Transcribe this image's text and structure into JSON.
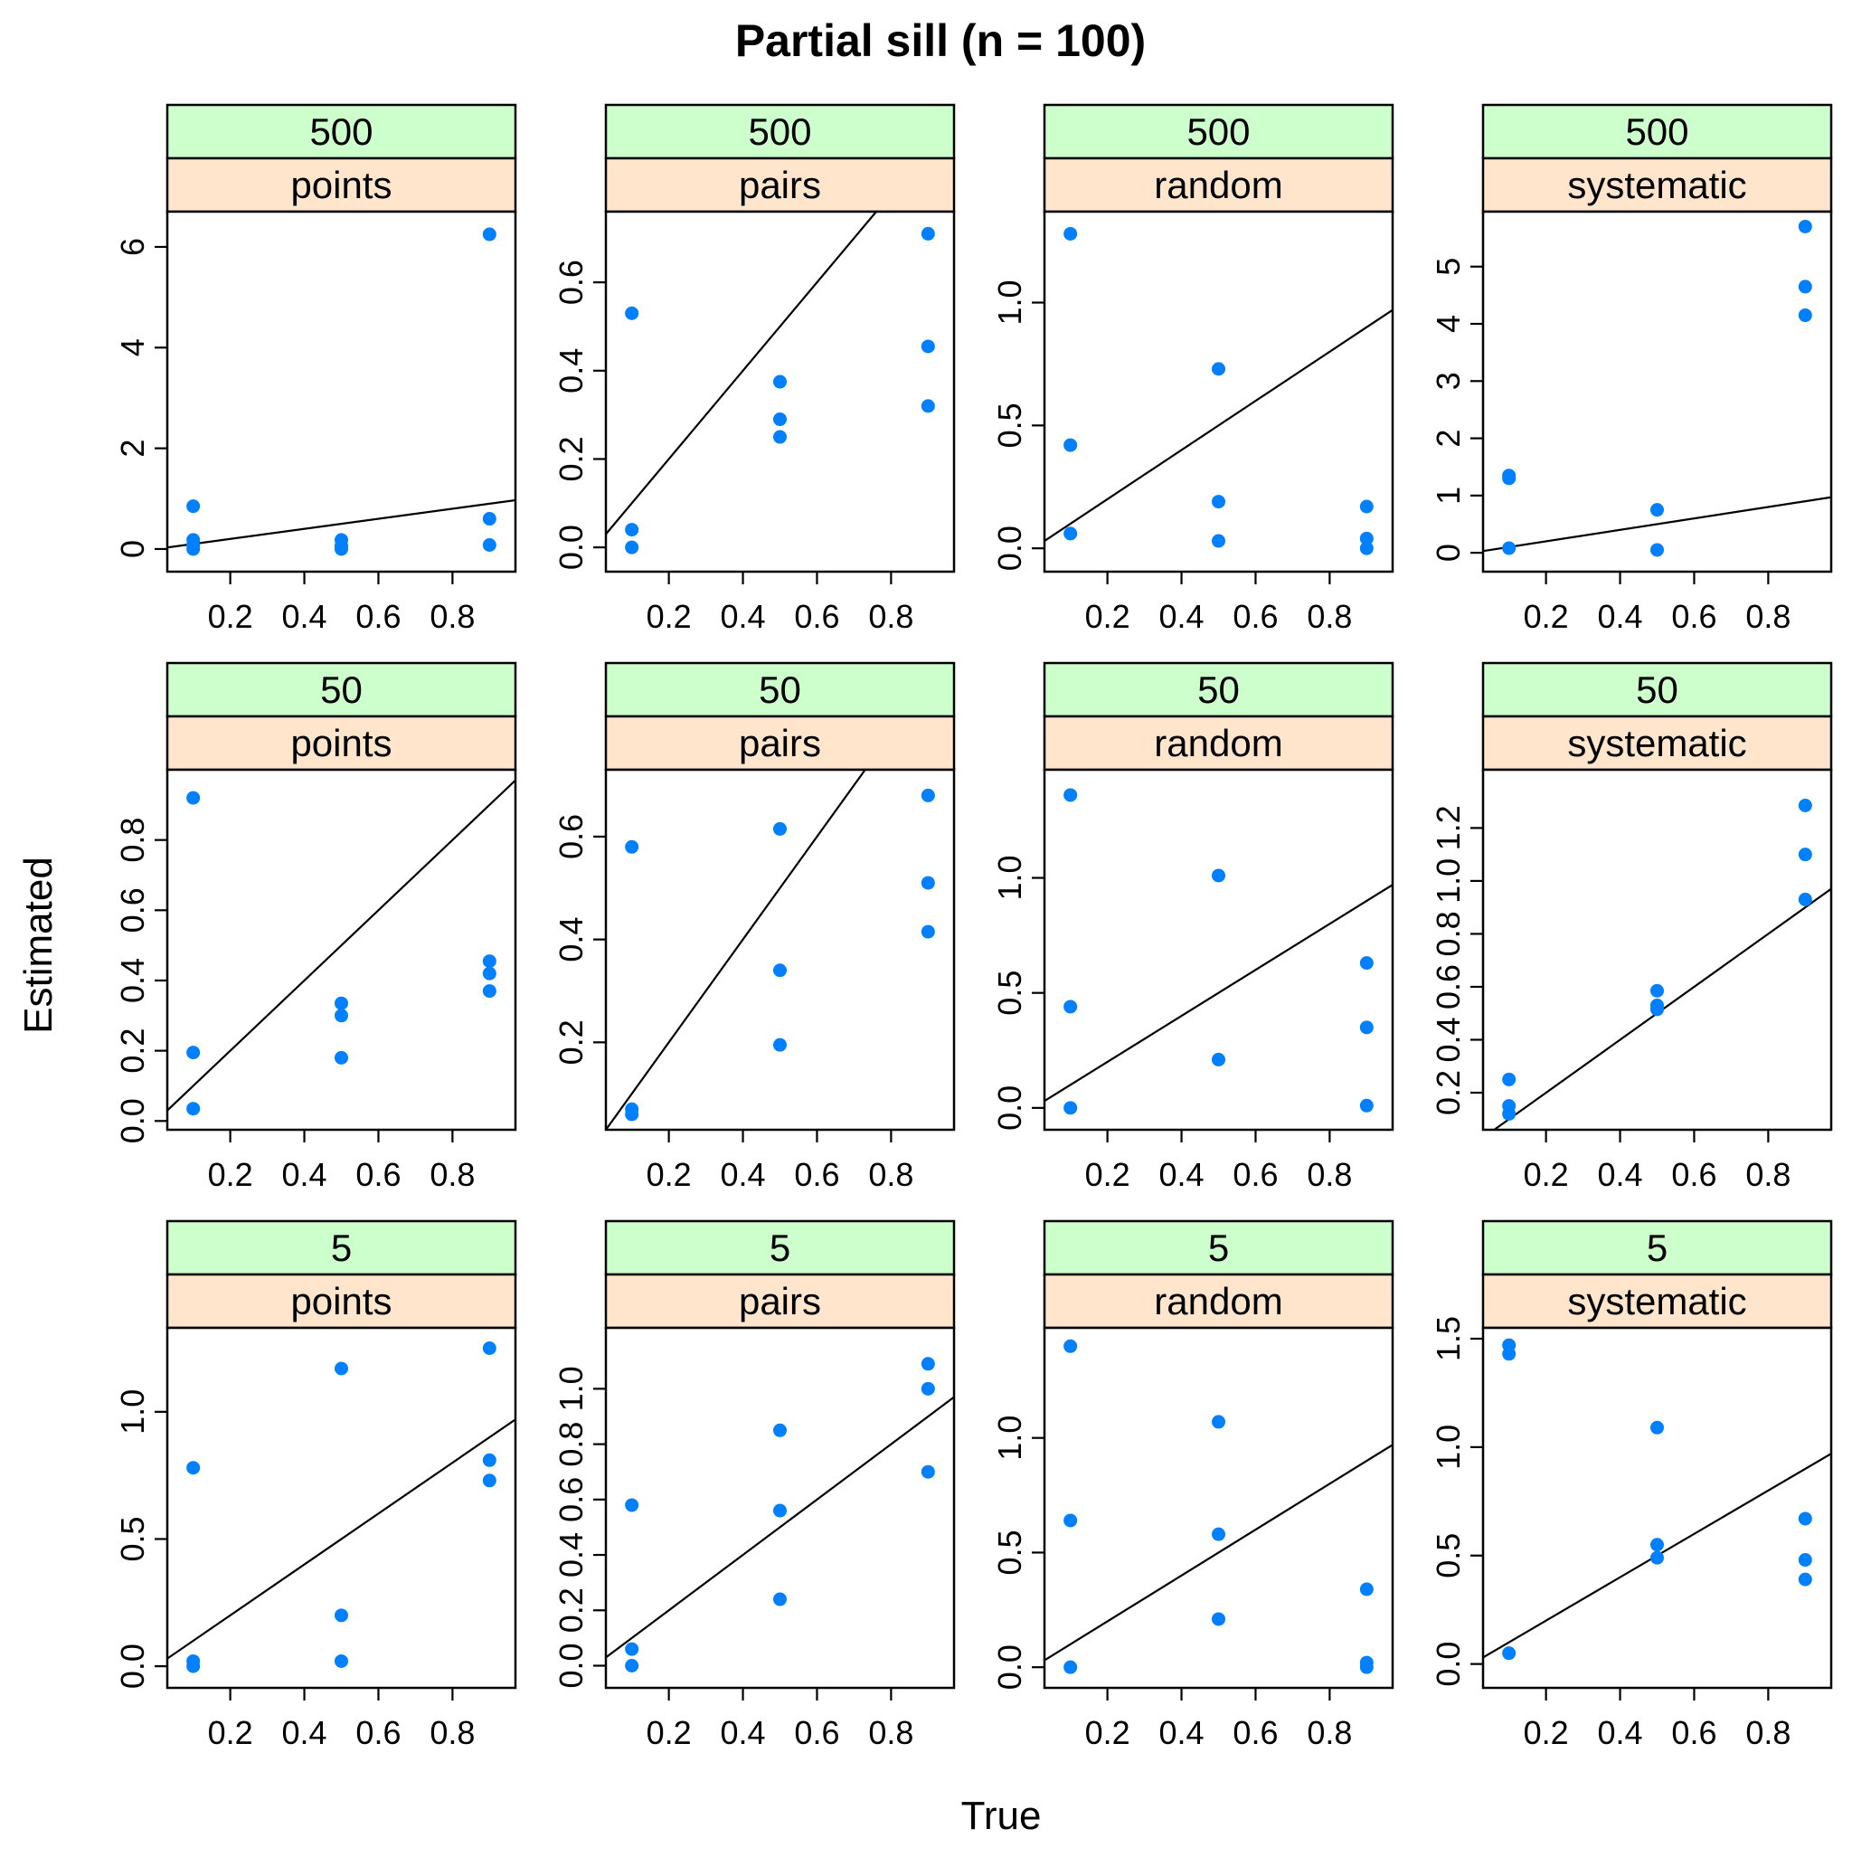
{
  "figure": {
    "title": "Partial sill (n = 100)",
    "xlabel": "True",
    "ylabel": "Estimated"
  },
  "colors": {
    "strip_top": "#ccffcc",
    "strip_bottom": "#ffe5cc",
    "points": "#0080ff",
    "line": "#000000"
  },
  "chart_data": [
    {
      "type": "scatter",
      "strip_top": "500",
      "strip_bottom": "points",
      "xlim": [
        0.03,
        0.97
      ],
      "ylim": [
        -0.45,
        6.7
      ],
      "xticks": [
        "0.2",
        "0.4",
        "0.6",
        "0.8"
      ],
      "yticks": [
        "0",
        "2",
        "4",
        "6"
      ],
      "reference_line": "y = x",
      "x": [
        0.1,
        0.1,
        0.1,
        0.1,
        0.5,
        0.5,
        0.5,
        0.9,
        0.9,
        0.9
      ],
      "y": [
        0.85,
        0.18,
        0.08,
        0.0,
        0.18,
        0.06,
        0.0,
        6.25,
        0.6,
        0.08
      ]
    },
    {
      "type": "scatter",
      "strip_top": "500",
      "strip_bottom": "pairs",
      "xlim": [
        0.03,
        0.97
      ],
      "ylim": [
        -0.055,
        0.76
      ],
      "xticks": [
        "0.2",
        "0.4",
        "0.6",
        "0.8"
      ],
      "yticks": [
        "0.0",
        "0.2",
        "0.4",
        "0.6"
      ],
      "reference_line": "y = x",
      "x": [
        0.1,
        0.1,
        0.1,
        0.5,
        0.5,
        0.5,
        0.9,
        0.9,
        0.9
      ],
      "y": [
        0.53,
        0.04,
        0.0,
        0.375,
        0.29,
        0.25,
        0.71,
        0.455,
        0.32
      ]
    },
    {
      "type": "scatter",
      "strip_top": "500",
      "strip_bottom": "random",
      "xlim": [
        0.03,
        0.97
      ],
      "ylim": [
        -0.095,
        1.37
      ],
      "xticks": [
        "0.2",
        "0.4",
        "0.6",
        "0.8"
      ],
      "yticks": [
        "0.0",
        "0.5",
        "1.0"
      ],
      "reference_line": "y = x",
      "x": [
        0.1,
        0.1,
        0.1,
        0.5,
        0.5,
        0.5,
        0.9,
        0.9,
        0.9
      ],
      "y": [
        1.28,
        0.42,
        0.06,
        0.73,
        0.19,
        0.03,
        0.17,
        0.04,
        0.0
      ],
      "notes": ""
    },
    {
      "type": "scatter",
      "strip_top": "500",
      "strip_bottom": "systematic",
      "xlim": [
        0.03,
        0.97
      ],
      "ylim": [
        -0.33,
        5.96
      ],
      "xticks": [
        "0.2",
        "0.4",
        "0.6",
        "0.8"
      ],
      "yticks": [
        "0",
        "1",
        "2",
        "3",
        "4",
        "5"
      ],
      "reference_line": "y = x",
      "x": [
        0.1,
        0.1,
        0.1,
        0.5,
        0.5,
        0.9,
        0.9,
        0.9
      ],
      "y": [
        1.35,
        1.3,
        0.08,
        0.75,
        0.05,
        5.7,
        4.65,
        4.15
      ]
    },
    {
      "type": "scatter",
      "strip_top": "50",
      "strip_bottom": "points",
      "xlim": [
        0.03,
        0.97
      ],
      "ylim": [
        -0.025,
        1.0
      ],
      "xticks": [
        "0.2",
        "0.4",
        "0.6",
        "0.8"
      ],
      "yticks": [
        "0.0",
        "0.2",
        "0.4",
        "0.6",
        "0.8"
      ],
      "reference_line": "y = x",
      "x": [
        0.1,
        0.1,
        0.1,
        0.5,
        0.5,
        0.5,
        0.9,
        0.9,
        0.9
      ],
      "y": [
        0.92,
        0.195,
        0.035,
        0.335,
        0.3,
        0.18,
        0.455,
        0.42,
        0.37
      ]
    },
    {
      "type": "scatter",
      "strip_top": "50",
      "strip_bottom": "pairs",
      "xlim": [
        0.03,
        0.97
      ],
      "ylim": [
        0.03,
        0.73
      ],
      "xticks": [
        "0.2",
        "0.4",
        "0.6",
        "0.8"
      ],
      "yticks": [
        "0.2",
        "0.4",
        "0.6"
      ],
      "reference_line": "y = x",
      "x": [
        0.1,
        0.1,
        0.1,
        0.5,
        0.5,
        0.5,
        0.9,
        0.9,
        0.9
      ],
      "y": [
        0.58,
        0.07,
        0.06,
        0.615,
        0.34,
        0.195,
        0.68,
        0.51,
        0.415
      ]
    },
    {
      "type": "scatter",
      "strip_top": "50",
      "strip_bottom": "random",
      "xlim": [
        0.03,
        0.97
      ],
      "ylim": [
        -0.095,
        1.47
      ],
      "xticks": [
        "0.2",
        "0.4",
        "0.6",
        "0.8"
      ],
      "yticks": [
        "0.0",
        "0.5",
        "1.0"
      ],
      "reference_line": "y = x",
      "x": [
        0.1,
        0.1,
        0.1,
        0.5,
        0.5,
        0.9,
        0.9,
        0.9
      ],
      "y": [
        1.36,
        0.44,
        0.0,
        1.01,
        0.21,
        0.63,
        0.35,
        0.01
      ]
    },
    {
      "type": "scatter",
      "strip_top": "50",
      "strip_bottom": "systematic",
      "xlim": [
        0.03,
        0.97
      ],
      "ylim": [
        0.06,
        1.42
      ],
      "xticks": [
        "0.2",
        "0.4",
        "0.6",
        "0.8"
      ],
      "yticks": [
        "0.2",
        "0.4",
        "0.6",
        "0.8",
        "1.0",
        "1.2"
      ],
      "reference_line": "y = x",
      "x": [
        0.1,
        0.1,
        0.1,
        0.5,
        0.5,
        0.5,
        0.9,
        0.9,
        0.9
      ],
      "y": [
        0.25,
        0.15,
        0.12,
        0.585,
        0.53,
        0.515,
        1.285,
        1.1,
        0.93
      ]
    },
    {
      "type": "scatter",
      "strip_top": "5",
      "strip_bottom": "points",
      "xlim": [
        0.03,
        0.97
      ],
      "ylim": [
        -0.085,
        1.33
      ],
      "xticks": [
        "0.2",
        "0.4",
        "0.6",
        "0.8"
      ],
      "yticks": [
        "0.0",
        "0.5",
        "1.0"
      ],
      "reference_line": "y = x",
      "x": [
        0.1,
        0.1,
        0.1,
        0.5,
        0.5,
        0.5,
        0.9,
        0.9,
        0.9
      ],
      "y": [
        0.78,
        0.02,
        0.0,
        1.17,
        0.2,
        0.02,
        1.25,
        0.81,
        0.73
      ]
    },
    {
      "type": "scatter",
      "strip_top": "5",
      "strip_bottom": "pairs",
      "xlim": [
        0.03,
        0.97
      ],
      "ylim": [
        -0.08,
        1.22
      ],
      "xticks": [
        "0.2",
        "0.4",
        "0.6",
        "0.8"
      ],
      "yticks": [
        "0.0",
        "0.2",
        "0.4",
        "0.6",
        "0.8",
        "1.0"
      ],
      "reference_line": "y = x",
      "x": [
        0.1,
        0.1,
        0.1,
        0.5,
        0.5,
        0.5,
        0.9,
        0.9,
        0.9
      ],
      "y": [
        0.58,
        0.06,
        0.0,
        0.85,
        0.56,
        0.24,
        1.09,
        1.0,
        0.7
      ]
    },
    {
      "type": "scatter",
      "strip_top": "5",
      "strip_bottom": "random",
      "xlim": [
        0.03,
        0.97
      ],
      "ylim": [
        -0.09,
        1.48
      ],
      "xticks": [
        "0.2",
        "0.4",
        "0.6",
        "0.8"
      ],
      "yticks": [
        "0.0",
        "0.5",
        "1.0"
      ],
      "reference_line": "y = x",
      "x": [
        0.1,
        0.1,
        0.1,
        0.5,
        0.5,
        0.5,
        0.9,
        0.9,
        0.9
      ],
      "y": [
        1.4,
        0.64,
        0.0,
        1.07,
        0.58,
        0.21,
        0.34,
        0.02,
        0.0
      ]
    },
    {
      "type": "scatter",
      "strip_top": "5",
      "strip_bottom": "systematic",
      "xlim": [
        0.03,
        0.97
      ],
      "ylim": [
        -0.11,
        1.55
      ],
      "xticks": [
        "0.2",
        "0.4",
        "0.6",
        "0.8"
      ],
      "yticks": [
        "0.0",
        "0.5",
        "1.0",
        "1.5"
      ],
      "reference_line": "y = x",
      "x": [
        0.1,
        0.1,
        0.1,
        0.5,
        0.5,
        0.5,
        0.9,
        0.9,
        0.9
      ],
      "y": [
        1.47,
        1.43,
        0.05,
        1.09,
        0.55,
        0.49,
        0.67,
        0.48,
        0.39
      ]
    }
  ]
}
